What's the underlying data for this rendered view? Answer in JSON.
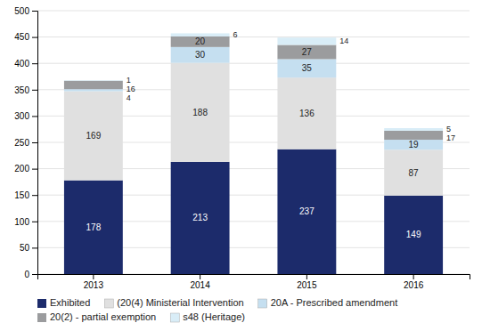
{
  "chart_data": {
    "type": "bar",
    "stacked": true,
    "data_labels": true,
    "grid": true,
    "legend": "bottom",
    "categories": [
      "2013",
      "2014",
      "2015",
      "2016"
    ],
    "series": [
      {
        "name": "Exhibited",
        "color": "#1c2b6b",
        "values": [
          178,
          213,
          237,
          149
        ]
      },
      {
        "name": "(20(4) Ministerial Intervention",
        "color": "#e0e0e0",
        "values": [
          169,
          188,
          136,
          87
        ]
      },
      {
        "name": "20A - Prescribed amendment",
        "color": "#c5dff0",
        "values": [
          4,
          30,
          35,
          19
        ]
      },
      {
        "name": "20(2) - partial exemption",
        "color": "#9b9c9e",
        "values": [
          16,
          20,
          27,
          17
        ]
      },
      {
        "name": "s48 (Heritage)",
        "color": "#d9edf7",
        "values": [
          1,
          6,
          14,
          5
        ]
      }
    ],
    "ylim": [
      0,
      500
    ],
    "yticks": [
      0,
      50,
      100,
      150,
      200,
      250,
      300,
      350,
      400,
      450,
      500
    ]
  }
}
